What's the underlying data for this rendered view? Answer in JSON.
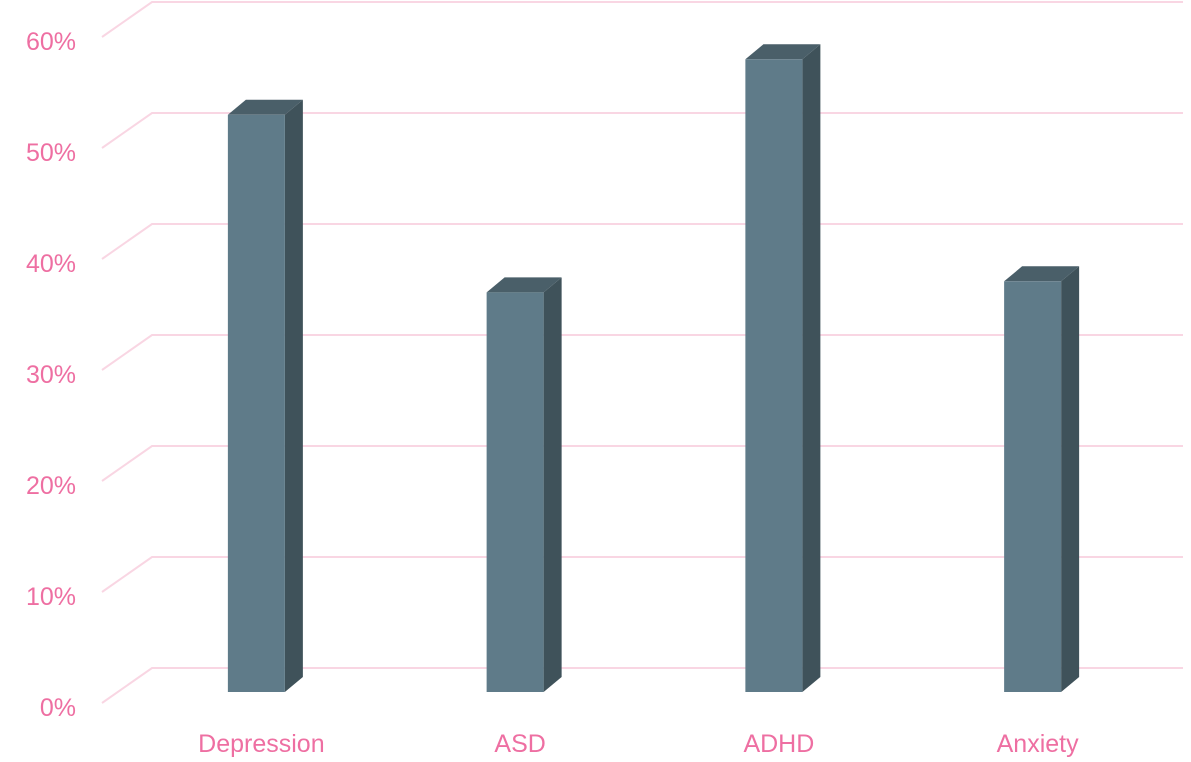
{
  "chart_data": {
    "type": "bar",
    "style": "3d-column",
    "categories": [
      "Depression",
      "ASD",
      "ADHD",
      "Anxiety"
    ],
    "values": [
      52,
      36,
      57,
      37
    ],
    "ylim": [
      0,
      60
    ],
    "yticks": [
      {
        "value": 0,
        "label": "0%"
      },
      {
        "value": 10,
        "label": "10%"
      },
      {
        "value": 20,
        "label": "20%"
      },
      {
        "value": 30,
        "label": "30%"
      },
      {
        "value": 40,
        "label": "40%"
      },
      {
        "value": 50,
        "label": "50%"
      },
      {
        "value": 60,
        "label": "60%"
      }
    ],
    "grid": true,
    "legend": "none",
    "title": "",
    "xlabel": "",
    "ylabel": ""
  },
  "colors": {
    "bar_front": "#5f7b89",
    "bar_side": "#3f525a",
    "bar_top": "#4a5f69",
    "gridline": "#f9d6e3",
    "label_text": "#ee6fa2"
  }
}
